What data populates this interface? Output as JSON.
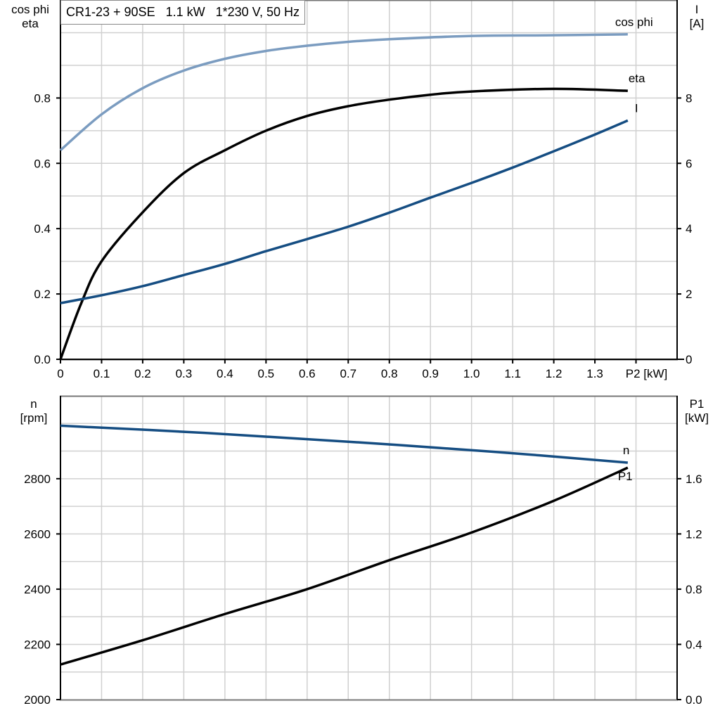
{
  "title": "CR1-23 + 90SE   1.1 kW   1*230 V, 50 Hz",
  "colors": {
    "cos_phi": "#7b9cc0",
    "eta": "#000000",
    "I": "#154d82",
    "n": "#154d82",
    "P1": "#000000",
    "grid": "#d0d0d0"
  },
  "chart_data": [
    {
      "type": "line",
      "xlabel": "P2 [kW]",
      "xlim": [
        0,
        1.5
      ],
      "x_ticks": [
        "0",
        "0.1",
        "0.2",
        "0.3",
        "0.4",
        "0.5",
        "0.6",
        "0.7",
        "0.8",
        "0.9",
        "1.0",
        "1.1",
        "1.2",
        "1.3"
      ],
      "ylabel_left": [
        "cos phi",
        "eta"
      ],
      "ylim_left": [
        0,
        1.1
      ],
      "y_ticks_left": [
        "0.0",
        "0.2",
        "0.4",
        "0.6",
        "0.8"
      ],
      "ylabel_right": [
        "I",
        "[A]"
      ],
      "ylim_right": [
        0,
        11
      ],
      "y_ticks_right": [
        "0",
        "2",
        "4",
        "6",
        "8"
      ],
      "grid": true,
      "series": [
        {
          "name": "cos phi",
          "axis": "left",
          "x": [
            0,
            0.1,
            0.2,
            0.3,
            0.4,
            0.5,
            0.6,
            0.7,
            0.8,
            1.0,
            1.2,
            1.38
          ],
          "y": [
            0.64,
            0.75,
            0.83,
            0.884,
            0.92,
            0.944,
            0.96,
            0.972,
            0.98,
            0.99,
            0.992,
            0.995
          ]
        },
        {
          "name": "eta",
          "axis": "left",
          "x": [
            0,
            0.05,
            0.1,
            0.2,
            0.3,
            0.4,
            0.5,
            0.6,
            0.7,
            0.8,
            0.9,
            1.0,
            1.2,
            1.38
          ],
          "y": [
            0,
            0.17,
            0.3,
            0.45,
            0.57,
            0.64,
            0.7,
            0.745,
            0.775,
            0.795,
            0.81,
            0.82,
            0.828,
            0.822
          ]
        },
        {
          "name": "I",
          "axis": "right",
          "x": [
            0,
            0.1,
            0.2,
            0.3,
            0.4,
            0.5,
            0.6,
            0.7,
            0.8,
            0.9,
            1.0,
            1.1,
            1.2,
            1.3,
            1.38
          ],
          "y": [
            1.72,
            1.96,
            2.24,
            2.58,
            2.92,
            3.31,
            3.68,
            4.06,
            4.49,
            4.95,
            5.4,
            5.87,
            6.37,
            6.88,
            7.31
          ]
        }
      ]
    },
    {
      "type": "line",
      "xlim": [
        0,
        1.5
      ],
      "ylabel_left": [
        "n",
        "[rpm]"
      ],
      "ylim_left": [
        2000,
        3100
      ],
      "y_ticks_left": [
        "2000",
        "2200",
        "2400",
        "2600",
        "2800"
      ],
      "ylabel_right": [
        "P1",
        "[kW]"
      ],
      "ylim_right": [
        0,
        2.2
      ],
      "y_ticks_right": [
        "0.0",
        "0.4",
        "0.8",
        "1.2",
        "1.6"
      ],
      "grid": true,
      "series": [
        {
          "name": "n",
          "axis": "left",
          "x": [
            0,
            0.35,
            0.7,
            1.05,
            1.38
          ],
          "y": [
            2992,
            2966,
            2934,
            2898,
            2858
          ]
        },
        {
          "name": "P1",
          "axis": "right",
          "x": [
            0,
            0.2,
            0.4,
            0.6,
            0.8,
            1.0,
            1.2,
            1.38
          ],
          "y": [
            0.254,
            0.43,
            0.62,
            0.8,
            1.01,
            1.21,
            1.44,
            1.68
          ]
        }
      ]
    }
  ]
}
